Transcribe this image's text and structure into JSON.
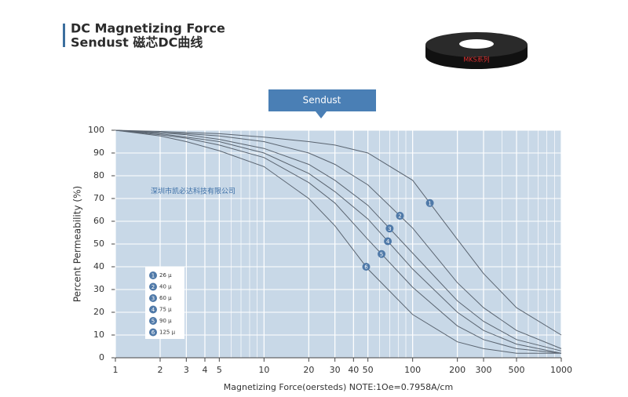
{
  "chart_data": {
    "type": "line",
    "title": "DC Magnetizing Force",
    "subtitle": "Sendust 磁芯DC曲线",
    "tab_label": "Sendust",
    "core_label": "MKS系列",
    "watermark": "深圳市凯必达科技有限公司",
    "x_label": "Magnetizing Force(oersteds)  NOTE:1Oe=0.7958A/cm",
    "y_label": "Percent Permeability (%)",
    "log_x": true,
    "grid": true,
    "x": [
      1,
      2,
      3,
      5,
      10,
      20,
      30,
      50,
      100,
      200,
      300,
      500,
      1000
    ],
    "xlim": [
      1,
      1000
    ],
    "xticks": [
      1,
      2,
      3,
      4,
      5,
      10,
      20,
      30,
      40,
      50,
      100,
      200,
      300,
      500,
      1000
    ],
    "ylim": [
      0,
      100
    ],
    "yticks": [
      0,
      10,
      20,
      30,
      40,
      50,
      60,
      70,
      80,
      90,
      100
    ],
    "series": [
      {
        "name": "26 μ",
        "marker": "1",
        "color": "#5a6470",
        "values": [
          100,
          99.5,
          99,
          98.5,
          97,
          95,
          93.5,
          90,
          78,
          52,
          37,
          22,
          10
        ]
      },
      {
        "name": "40 μ",
        "marker": "2",
        "color": "#5a6470",
        "values": [
          100,
          99,
          98.5,
          97.5,
          95,
          90,
          85,
          76,
          57,
          33,
          22,
          12,
          4
        ]
      },
      {
        "name": "60 μ",
        "marker": "3",
        "color": "#5a6470",
        "values": [
          100,
          99,
          98,
          96,
          92,
          85,
          78,
          67,
          46,
          25,
          16,
          8,
          3
        ]
      },
      {
        "name": "75 μ",
        "marker": "4",
        "color": "#5a6470",
        "values": [
          100,
          98.5,
          97,
          95,
          90,
          81,
          73,
          61,
          39,
          20,
          12,
          6,
          2
        ]
      },
      {
        "name": "90 μ",
        "marker": "5",
        "color": "#5a6470",
        "values": [
          100,
          98,
          96.5,
          93.5,
          88,
          77,
          68,
          52,
          31,
          14,
          8,
          4,
          2
        ]
      },
      {
        "name": "125 μ",
        "marker": "6",
        "color": "#5a6470",
        "values": [
          100,
          97.5,
          95,
          91,
          84,
          70,
          58,
          39,
          19,
          7,
          4,
          2,
          2
        ]
      }
    ]
  }
}
